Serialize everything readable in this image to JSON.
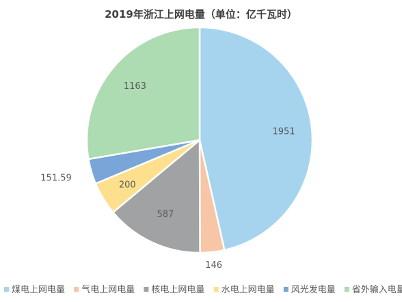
{
  "chart_data": {
    "type": "pie",
    "title": "2019年浙江上网电量（单位：亿千瓦时）",
    "categories": [
      "煤电上网电量",
      "气电上网电量",
      "核电上网电量",
      "水电上网电量",
      "风光发电量",
      "省外输入电量"
    ],
    "values": [
      1951,
      146,
      587,
      200,
      151.59,
      1163
    ],
    "data_labels": [
      "1951",
      "146",
      "587",
      "200",
      "151.59",
      "1163"
    ],
    "colors": [
      "#a6d4ee",
      "#f7c6a6",
      "#a0a2a4",
      "#fde08e",
      "#7aa5d9",
      "#addbb2"
    ],
    "legend_position": "bottom"
  }
}
